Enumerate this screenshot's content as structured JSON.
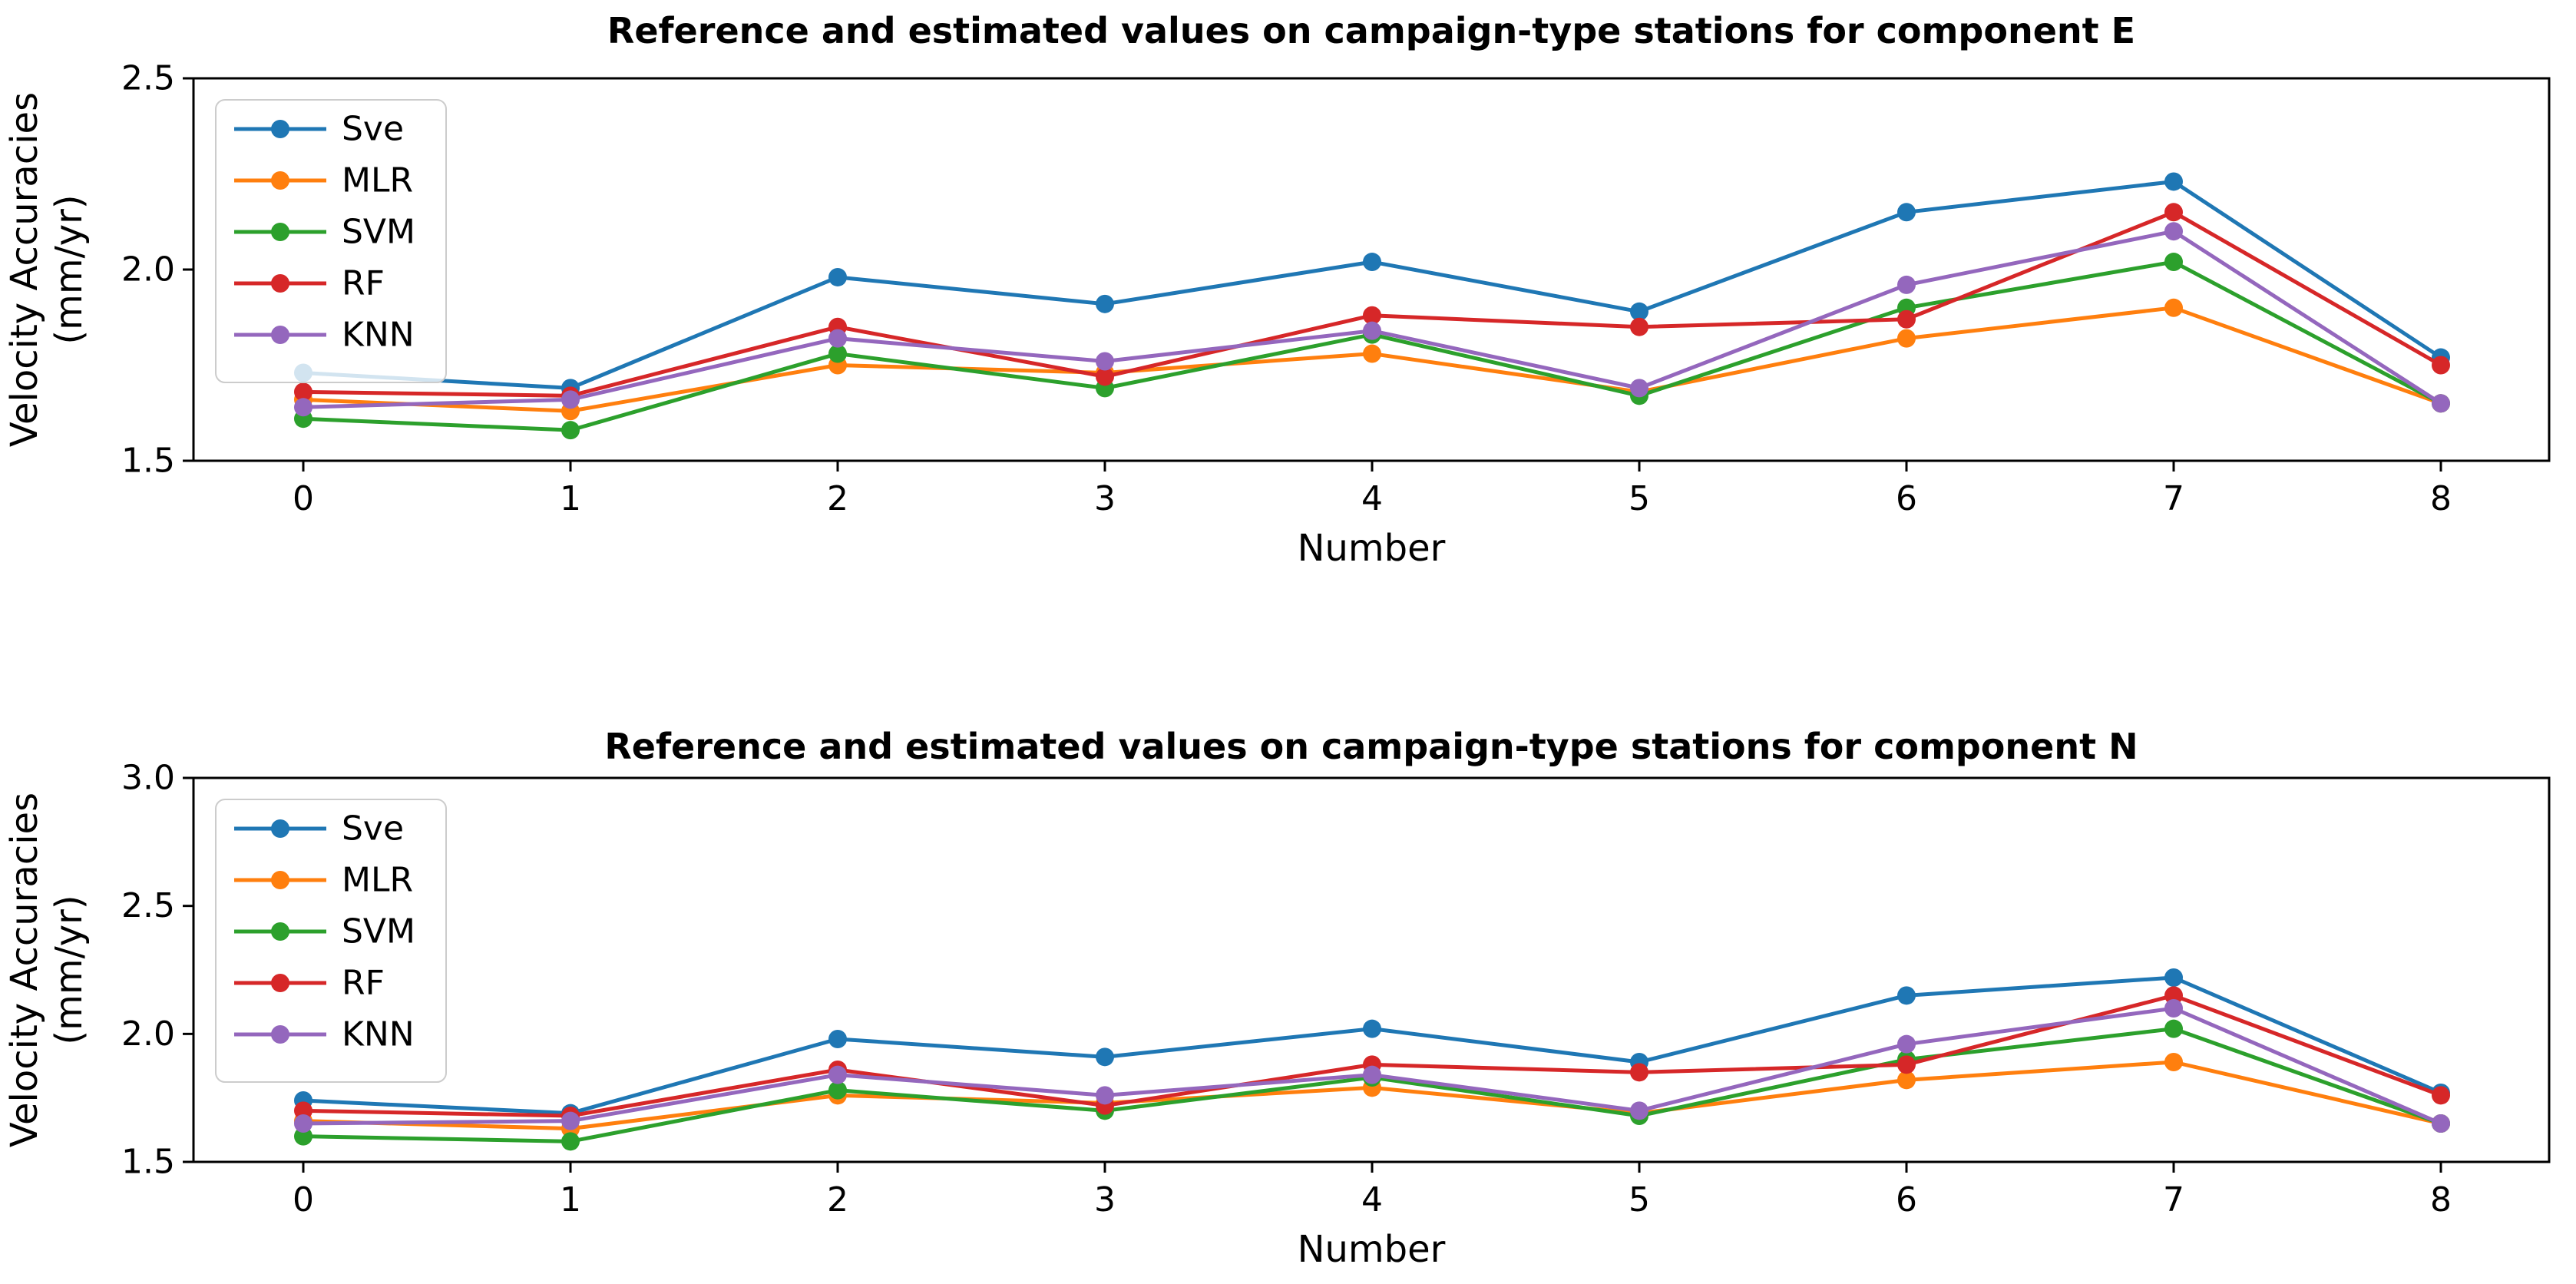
{
  "figure": {
    "background": "#ffffff",
    "spine_color": "#000000",
    "legend_border_color": "#cccccc",
    "legend_background": "#ffffff"
  },
  "legend": {
    "position": "upper left",
    "entries": [
      "Sve",
      "MLR",
      "SVM",
      "RF",
      "KNN"
    ]
  },
  "chart_data": [
    {
      "type": "line",
      "component": "E",
      "title": "Reference and estimated values on campaign-type stations for component E",
      "xlabel": "Number",
      "ylabel": "Velocity Accuracies (mm/yr)",
      "ylabel_lines": [
        "Velocity Accuracies",
        "(mm/yr)"
      ],
      "x": [
        0,
        1,
        2,
        3,
        4,
        5,
        6,
        7,
        8
      ],
      "xtick_labels": [
        "0",
        "1",
        "2",
        "3",
        "4",
        "5",
        "6",
        "7",
        "8"
      ],
      "ytick_values": [
        1.5,
        2.0,
        2.5
      ],
      "ytick_labels": [
        "1.5",
        "2.0",
        "2.5"
      ],
      "ylim": [
        1.5,
        2.5
      ],
      "grid": false,
      "legend_position": "upper left",
      "series": [
        {
          "name": "Sve",
          "color": "#1f77b4",
          "values": [
            1.73,
            1.69,
            1.98,
            1.91,
            2.02,
            1.89,
            2.15,
            2.23,
            1.77
          ]
        },
        {
          "name": "MLR",
          "color": "#ff7f0e",
          "values": [
            1.66,
            1.63,
            1.75,
            1.73,
            1.78,
            1.68,
            1.82,
            1.9,
            1.65
          ]
        },
        {
          "name": "SVM",
          "color": "#2ca02c",
          "values": [
            1.61,
            1.58,
            1.78,
            1.69,
            1.83,
            1.67,
            1.9,
            2.02,
            1.65
          ]
        },
        {
          "name": "RF",
          "color": "#d62728",
          "values": [
            1.68,
            1.67,
            1.85,
            1.72,
            1.88,
            1.85,
            1.87,
            2.15,
            1.75
          ]
        },
        {
          "name": "KNN",
          "color": "#9467bd",
          "values": [
            1.64,
            1.66,
            1.82,
            1.76,
            1.84,
            1.69,
            1.96,
            2.1,
            1.65
          ]
        }
      ]
    },
    {
      "type": "line",
      "component": "N",
      "title": "Reference and estimated values on campaign-type stations for component N",
      "xlabel": "Number",
      "ylabel": "Velocity Accuracies (mm/yr)",
      "ylabel_lines": [
        "Velocity Accuracies",
        "(mm/yr)"
      ],
      "x": [
        0,
        1,
        2,
        3,
        4,
        5,
        6,
        7,
        8
      ],
      "xtick_labels": [
        "0",
        "1",
        "2",
        "3",
        "4",
        "5",
        "6",
        "7",
        "8"
      ],
      "ytick_values": [
        1.5,
        2.0,
        2.5,
        3.0
      ],
      "ytick_labels": [
        "1.5",
        "2.0",
        "2.5",
        "3.0"
      ],
      "ylim": [
        1.5,
        3.0
      ],
      "grid": false,
      "legend_position": "upper left",
      "series": [
        {
          "name": "Sve",
          "color": "#1f77b4",
          "values": [
            1.74,
            1.69,
            1.98,
            1.91,
            2.02,
            1.89,
            2.15,
            2.22,
            1.77
          ]
        },
        {
          "name": "MLR",
          "color": "#ff7f0e",
          "values": [
            1.66,
            1.63,
            1.76,
            1.73,
            1.79,
            1.69,
            1.82,
            1.89,
            1.65
          ]
        },
        {
          "name": "SVM",
          "color": "#2ca02c",
          "values": [
            1.6,
            1.58,
            1.78,
            1.7,
            1.83,
            1.68,
            1.9,
            2.02,
            1.65
          ]
        },
        {
          "name": "RF",
          "color": "#d62728",
          "values": [
            1.7,
            1.68,
            1.86,
            1.72,
            1.88,
            1.85,
            1.88,
            2.15,
            1.76
          ]
        },
        {
          "name": "KNN",
          "color": "#9467bd",
          "values": [
            1.65,
            1.66,
            1.84,
            1.76,
            1.84,
            1.7,
            1.96,
            2.1,
            1.65
          ]
        }
      ]
    }
  ]
}
